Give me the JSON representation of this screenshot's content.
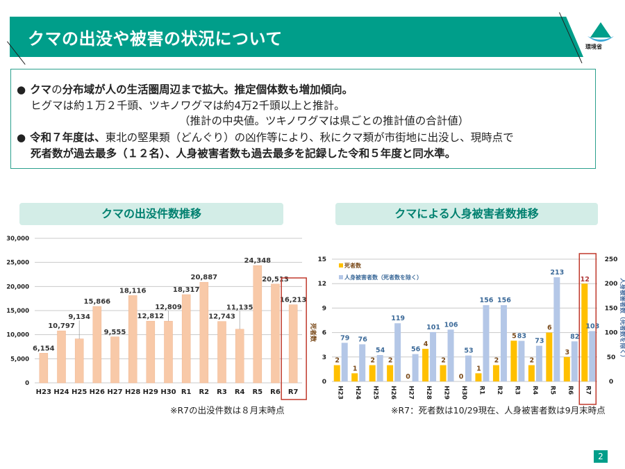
{
  "header": {
    "title": "クマの出没や被害の状況について",
    "logo_text": "環境省"
  },
  "info": {
    "line1_a": "クマ",
    "line1_b": "の",
    "line1_c": "分布域が人の生活圏周辺まで拡大。推定個体数も増加傾向。",
    "line2": "ヒグマは約１万２千頭、ツキノワグマは約4万2千頭以上と推計。",
    "line3": "（推計の中央値。ツキノワグマは県ごとの推計値の合計値）",
    "line4_a": "令和７年度は、",
    "line4_b": "東北の堅果類（どんぐり）の凶作等により、秋にクマ類が市街地に出没し、現時点で",
    "line5": "死者数が過去最多（１２名）、人身被害者数も過去最多を記録した令和５年度と同水準。"
  },
  "colors": {
    "brand": "#009e8a",
    "sightings_bar": "#f8c9a8",
    "deaths_bar": "#ffc000",
    "injuries_bar": "#b4c7e7",
    "highlight_box": "#c0392b"
  },
  "chart_data": [
    {
      "type": "bar",
      "title": "クマの出没件数推移",
      "categories": [
        "H23",
        "H24",
        "H25",
        "H26",
        "H27",
        "H28",
        "H29",
        "H30",
        "R1",
        "R2",
        "R3",
        "R4",
        "R5",
        "R6",
        "R7"
      ],
      "values": [
        6154,
        10797,
        9134,
        15866,
        9555,
        18116,
        12812,
        12809,
        18317,
        20887,
        12743,
        11135,
        24348,
        20513,
        16213
      ],
      "value_labels": [
        "6,154",
        "10,797",
        "9,134",
        "15,866",
        "9,555",
        "18,116",
        "12,812",
        "12,809",
        "18,317",
        "20,887",
        "12,743",
        "11,135",
        "24,348",
        "20,513",
        "16,213"
      ],
      "ylim": [
        0,
        30000
      ],
      "yticks": [
        "0",
        "5,000",
        "10,000",
        "15,000",
        "20,000",
        "25,000",
        "30,000"
      ],
      "grid": true,
      "highlight": "R7",
      "note": "※R7の出没件数は８月末時点"
    },
    {
      "type": "bar",
      "title": "クマによる人身被害者数推移",
      "categories": [
        "H23",
        "H24",
        "H25",
        "H26",
        "H27",
        "H28",
        "H29",
        "H30",
        "R1",
        "R2",
        "R3",
        "R4",
        "R5",
        "R6",
        "R7"
      ],
      "series": [
        {
          "name": "死者数",
          "axis": "left",
          "values": [
            2,
            1,
            2,
            2,
            0,
            4,
            2,
            0,
            1,
            2,
            5,
            2,
            6,
            3,
            12
          ]
        },
        {
          "name": "人身被害者数（死者数を除く）",
          "axis": "right",
          "values": [
            79,
            76,
            54,
            119,
            56,
            101,
            106,
            53,
            156,
            156,
            83,
            73,
            213,
            82,
            103
          ]
        }
      ],
      "ylabel": "死者数",
      "y2label": "人身被害者数（死者数を除く）",
      "ylim": [
        0,
        15
      ],
      "y2lim": [
        0,
        250
      ],
      "yticks": [
        "0",
        "3",
        "6",
        "9",
        "12",
        "15"
      ],
      "y2ticks": [
        "0",
        "50",
        "100",
        "150",
        "200",
        "250"
      ],
      "grid": true,
      "legend": "top-left",
      "highlight": "R7",
      "note": "※R7：死者数は10/29現在、人身被害者数は9月末時点"
    }
  ],
  "page_number": "2"
}
